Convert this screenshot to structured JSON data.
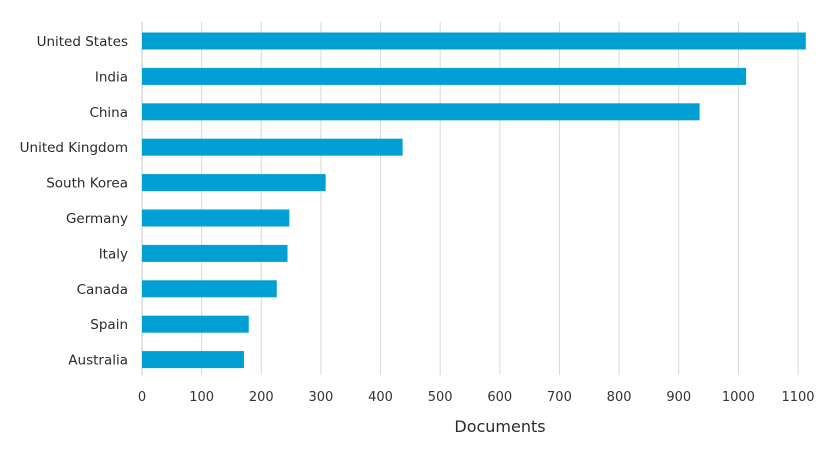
{
  "chart_data": {
    "type": "bar",
    "orientation": "horizontal",
    "title": "",
    "xlabel": "Documents",
    "ylabel": "",
    "categories": [
      "United States",
      "India",
      "China",
      "United Kingdom",
      "South Korea",
      "Germany",
      "Italy",
      "Canada",
      "Spain",
      "Australia"
    ],
    "values": [
      1113,
      1013,
      935,
      437,
      308,
      247,
      244,
      226,
      179,
      171
    ],
    "xlim": [
      0,
      1100
    ],
    "xticks": [
      "0",
      "100",
      "200",
      "300",
      "400",
      "500",
      "600",
      "700",
      "800",
      "900",
      "1000",
      "1100"
    ],
    "grid": "vertical",
    "bar_color": "#009fd4"
  }
}
